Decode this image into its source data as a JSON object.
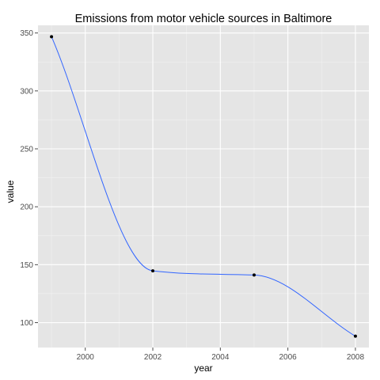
{
  "chart_data": {
    "type": "line",
    "title": "Emissions from motor vehicle sources in Baltimore",
    "xlabel": "year",
    "ylabel": "value",
    "x": [
      1999,
      2002,
      2005,
      2008
    ],
    "values": [
      346.8,
      144.7,
      141.1,
      88.3
    ],
    "xlim": [
      1998.6,
      2008.4
    ],
    "ylim": [
      78.5,
      356.6
    ],
    "xticks": [
      2000,
      2002,
      2004,
      2006,
      2008
    ],
    "xtick_labels": [
      "2000",
      "2002",
      "2004",
      "2006",
      "2008"
    ],
    "yticks": [
      100,
      150,
      200,
      250,
      300,
      350
    ],
    "ytick_labels": [
      "100",
      "150",
      "200",
      "250",
      "300",
      "350"
    ],
    "smooth": true,
    "grid": true,
    "colors": {
      "panel": "#e5e5e5",
      "grid_major": "#ffffff",
      "grid_minor": "#f2f2f2",
      "line": "#3366ff",
      "point": "#000000",
      "tick": "#4d4d4d"
    }
  }
}
